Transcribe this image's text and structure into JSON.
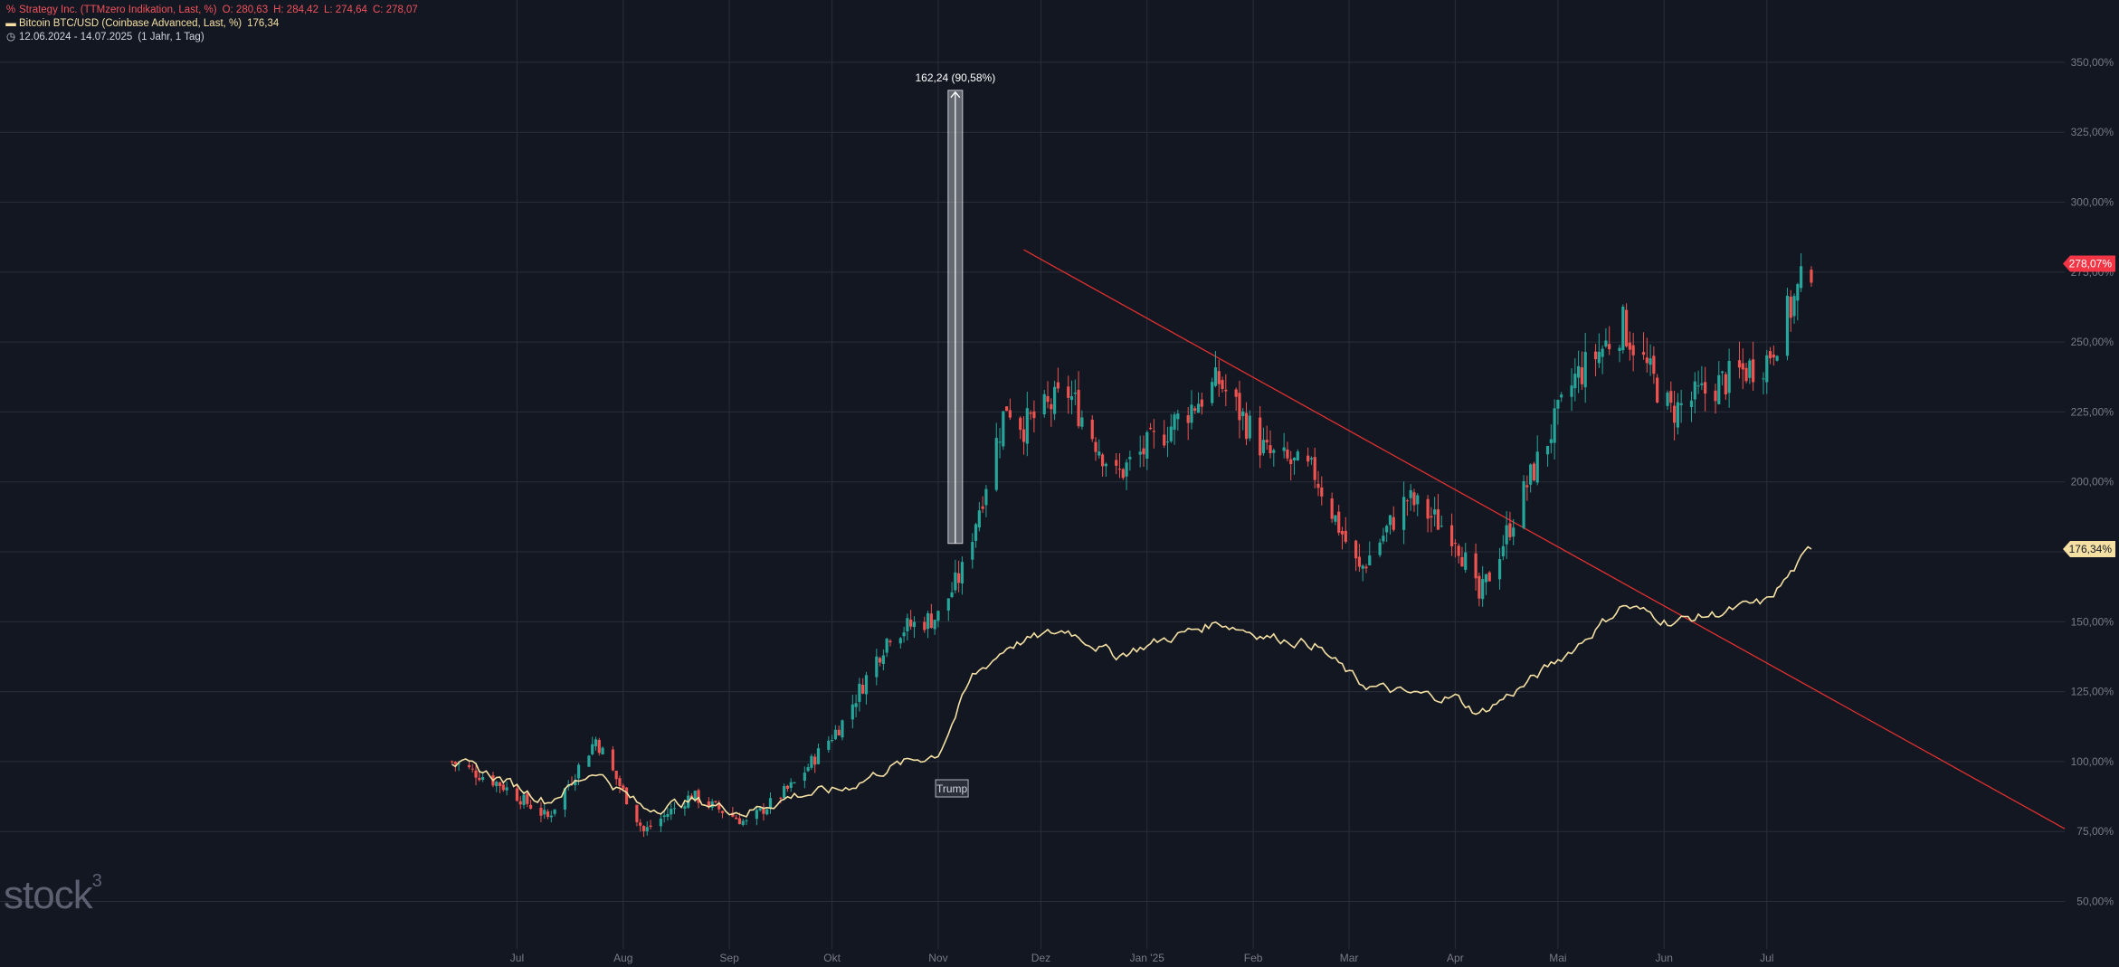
{
  "legend": {
    "series1": {
      "name": "Strategy Inc. (TTMzero Indikation, Last, %)",
      "o": "O: 280,63",
      "h": "H: 284,42",
      "l": "L: 274,64",
      "c": "C: 278,07"
    },
    "series2": {
      "name": "Bitcoin BTC/USD (Coinbase Advanced, Last, %)",
      "value": "176,34"
    },
    "period": {
      "range": "12.06.2024 - 14.07.2025",
      "interval": "(1 Jahr, 1 Tag)"
    }
  },
  "logo": {
    "text": "stock",
    "sup": "3"
  },
  "colors": {
    "background": "#131722",
    "up": "#26a69a",
    "down": "#ef5350",
    "btc": "#f5e0a3",
    "trendline": "#e0302f",
    "grid": "#2a2e39"
  },
  "chart_data": {
    "type": "candlestick+line",
    "x_labels": [
      "Jul",
      "Aug",
      "Sep",
      "Okt",
      "Nov",
      "Dez",
      "Jan '25",
      "Feb",
      "Mar",
      "Apr",
      "Mai",
      "Jun",
      "Jul"
    ],
    "x_label_dates": [
      "2024-07-01",
      "2024-08-01",
      "2024-09-01",
      "2024-10-01",
      "2024-11-01",
      "2024-12-01",
      "2025-01-01",
      "2025-02-01",
      "2025-03-01",
      "2025-04-01",
      "2025-05-01",
      "2025-06-01",
      "2025-07-01"
    ],
    "x_range": [
      "2024-02-01",
      "2025-09-26"
    ],
    "y_ticks": [
      "350,00%",
      "325,00%",
      "300,00%",
      "275,00%",
      "250,00%",
      "225,00%",
      "200,00%",
      "175,00%",
      "150,00%",
      "125,00%",
      "100,00%",
      "75,00%",
      "50,00%"
    ],
    "y_tick_values": [
      350,
      325,
      300,
      275,
      250,
      225,
      200,
      175,
      150,
      125,
      100,
      75,
      50
    ],
    "y_range": [
      45,
      360
    ],
    "y_unit": "%",
    "series": [
      {
        "name": "Strategy Inc. (TTMzero Indikation, Last, %)",
        "kind": "candlestick",
        "last_label": "278,07%",
        "closes": [
          [
            "2024-06-12",
            100
          ],
          [
            "2024-06-26",
            92
          ],
          [
            "2024-07-10",
            80
          ],
          [
            "2024-07-24",
            108
          ],
          [
            "2024-08-07",
            75
          ],
          [
            "2024-08-21",
            88
          ],
          [
            "2024-09-06",
            78
          ],
          [
            "2024-09-20",
            92
          ],
          [
            "2024-10-04",
            114
          ],
          [
            "2024-10-18",
            146
          ],
          [
            "2024-11-01",
            152
          ],
          [
            "2024-11-08",
            168
          ],
          [
            "2024-11-21",
            228
          ],
          [
            "2024-11-26",
            220
          ],
          [
            "2024-12-09",
            232
          ],
          [
            "2024-12-23",
            202
          ],
          [
            "2025-01-07",
            219
          ],
          [
            "2025-01-22",
            236
          ],
          [
            "2025-02-05",
            210
          ],
          [
            "2025-02-19",
            203
          ],
          [
            "2025-03-04",
            168
          ],
          [
            "2025-03-18",
            194
          ],
          [
            "2025-04-01",
            181
          ],
          [
            "2025-04-08",
            158
          ],
          [
            "2025-04-22",
            199
          ],
          [
            "2025-05-06",
            237
          ],
          [
            "2025-05-20",
            256
          ],
          [
            "2025-06-03",
            225
          ],
          [
            "2025-06-17",
            235
          ],
          [
            "2025-07-01",
            244
          ],
          [
            "2025-07-14",
            278
          ]
        ]
      },
      {
        "name": "Bitcoin BTC/USD (Coinbase Advanced, Last, %)",
        "kind": "line",
        "last_label": "176,34%",
        "points": [
          [
            "2024-06-12",
            100
          ],
          [
            "2024-06-26",
            94
          ],
          [
            "2024-07-10",
            86
          ],
          [
            "2024-07-24",
            97
          ],
          [
            "2024-08-07",
            83
          ],
          [
            "2024-08-21",
            86
          ],
          [
            "2024-09-06",
            82
          ],
          [
            "2024-09-20",
            88
          ],
          [
            "2024-10-04",
            90
          ],
          [
            "2024-10-18",
            98
          ],
          [
            "2024-11-01",
            103
          ],
          [
            "2024-11-11",
            130
          ],
          [
            "2024-11-22",
            142
          ],
          [
            "2024-12-09",
            147
          ],
          [
            "2024-12-23",
            138
          ],
          [
            "2025-01-07",
            144
          ],
          [
            "2025-01-22",
            150
          ],
          [
            "2025-02-05",
            145
          ],
          [
            "2025-02-19",
            142
          ],
          [
            "2025-03-04",
            128
          ],
          [
            "2025-03-18",
            124
          ],
          [
            "2025-04-01",
            123
          ],
          [
            "2025-04-08",
            117
          ],
          [
            "2025-04-22",
            128
          ],
          [
            "2025-05-06",
            141
          ],
          [
            "2025-05-20",
            156
          ],
          [
            "2025-06-03",
            150
          ],
          [
            "2025-06-17",
            153
          ],
          [
            "2025-07-01",
            157
          ],
          [
            "2025-07-14",
            176
          ]
        ]
      }
    ],
    "annotations": [
      {
        "type": "measure",
        "text": "162,24 (90,58%)",
        "x": "2024-11-06",
        "y_from": 178,
        "y_to": 340
      },
      {
        "type": "label",
        "text": "Trump",
        "x": "2024-11-05",
        "y": 99
      },
      {
        "type": "trendline",
        "from": [
          "2024-11-26",
          283
        ],
        "to": [
          "2025-09-26",
          76
        ]
      }
    ],
    "grid": true
  }
}
